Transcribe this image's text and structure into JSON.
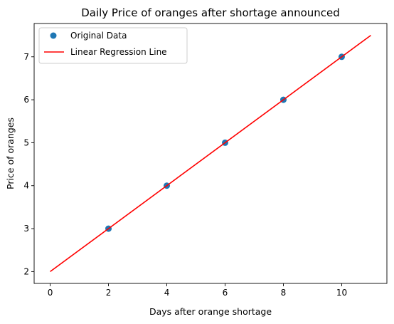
{
  "chart_data": {
    "type": "scatter",
    "title": "Daily Price of oranges after shortage announced",
    "xlabel": "Days after orange shortage",
    "ylabel": "Price of oranges",
    "xlim": [
      -0.55,
      11.55
    ],
    "ylim": [
      1.725,
      7.775
    ],
    "xticks": [
      0,
      2,
      4,
      6,
      8,
      10
    ],
    "yticks": [
      2,
      3,
      4,
      5,
      6,
      7
    ],
    "grid": false,
    "legend_position": "top-left",
    "series": [
      {
        "name": "Original Data",
        "kind": "scatter",
        "color": "#1f77b4",
        "x": [
          2,
          4,
          6,
          8,
          10
        ],
        "y": [
          3,
          4,
          5,
          6,
          7
        ]
      },
      {
        "name": "Linear Regression Line",
        "kind": "line",
        "color": "#ff0000",
        "x": [
          0,
          11
        ],
        "y": [
          2,
          7.5
        ]
      }
    ]
  }
}
